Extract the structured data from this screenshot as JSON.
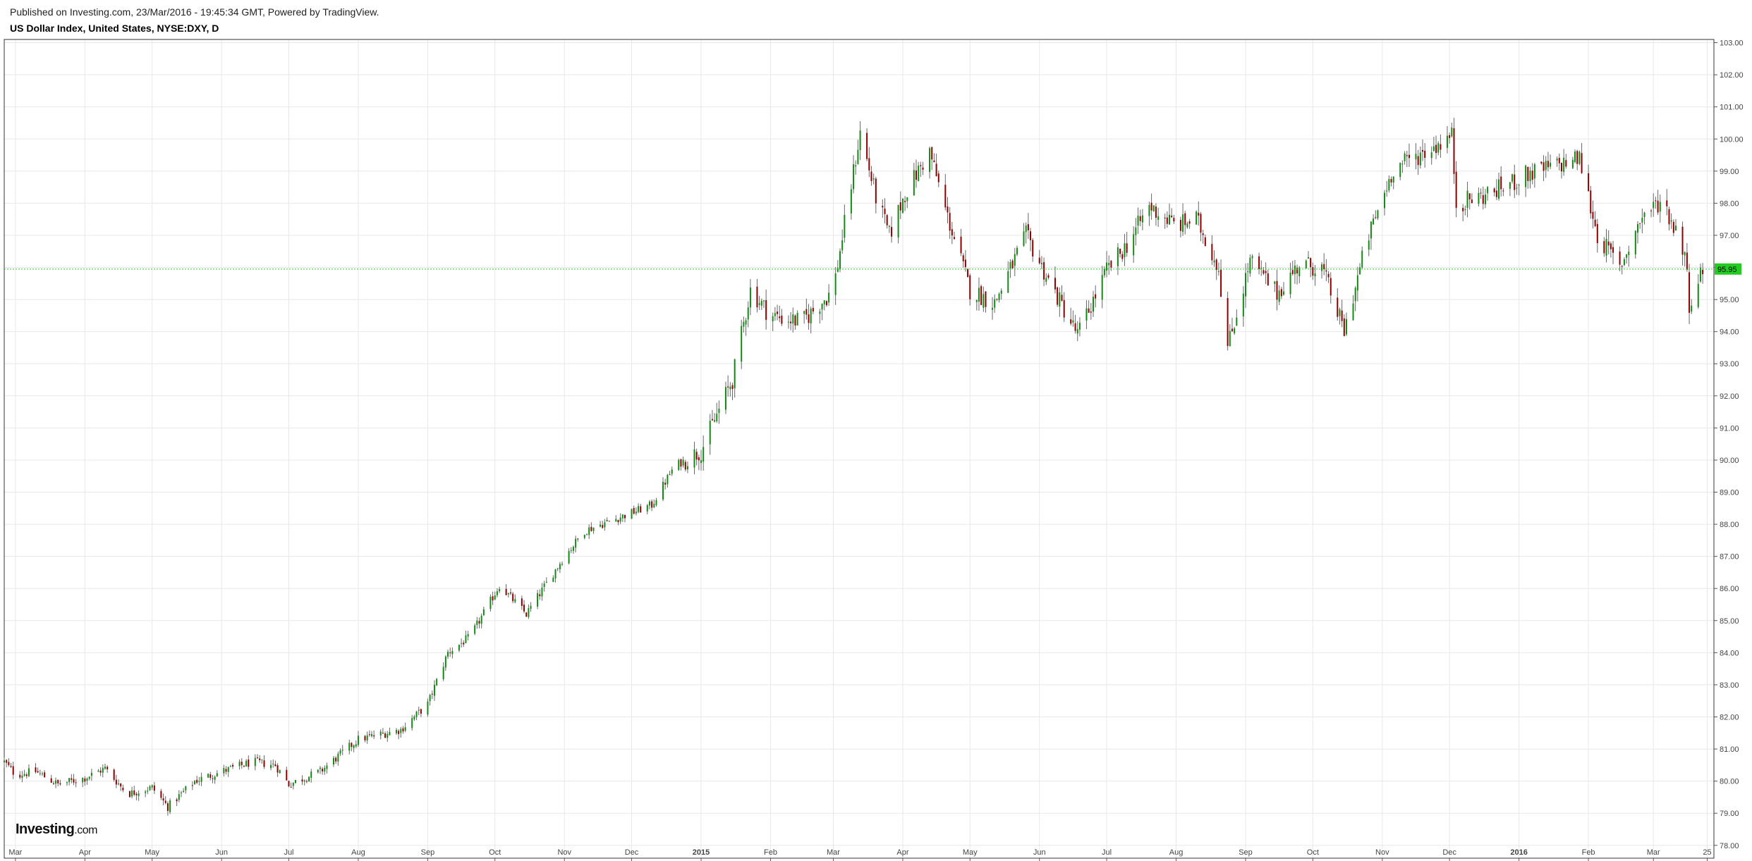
{
  "header": {
    "published": "Published on Investing.com, 23/Mar/2016 - 19:45:34 GMT, Powered by TradingView.",
    "symbol": "US Dollar Index, United States, NYSE:DXY, D"
  },
  "logo": {
    "brand": "Investing",
    "suffix": ".com"
  },
  "colors": {
    "up": "#138a13",
    "down": "#8b0000",
    "last_price_line": "#2ecc2e",
    "last_price_label_bg": "#22cc22",
    "grid": "#e8e8e8",
    "axis": "#555555"
  },
  "chart_data": {
    "type": "candlestick",
    "title": "US Dollar Index, United States, NYSE:DXY, D",
    "ylim": [
      77.6,
      103.1
    ],
    "yticks": [
      "78.00",
      "79.00",
      "80.00",
      "81.00",
      "82.00",
      "83.00",
      "84.00",
      "85.00",
      "86.00",
      "87.00",
      "88.00",
      "89.00",
      "90.00",
      "91.00",
      "92.00",
      "93.00",
      "94.00",
      "95.00",
      "96.00",
      "97.00",
      "98.00",
      "99.00",
      "100.00",
      "101.00",
      "102.00",
      "103.00"
    ],
    "x_start_label": "late Feb 2014",
    "xticks": [
      "Mar",
      "Apr",
      "May",
      "Jun",
      "Jul",
      "Aug",
      "Sep",
      "Oct",
      "Nov",
      "Dec",
      "2015",
      "Feb",
      "Mar",
      "Apr",
      "May",
      "Jun",
      "Jul",
      "Aug",
      "Sep",
      "Oct",
      "Nov",
      "Dec",
      "2016",
      "Feb",
      "Mar",
      "25"
    ],
    "last_price": "95.95",
    "grid": true,
    "path_points": [
      {
        "t": "2014-02-24",
        "v": 80.6
      },
      {
        "t": "2014-03-01",
        "v": 80.2
      },
      {
        "t": "2014-03-10",
        "v": 80.3
      },
      {
        "t": "2014-03-20",
        "v": 79.9
      },
      {
        "t": "2014-04-01",
        "v": 80.1
      },
      {
        "t": "2014-04-10",
        "v": 80.4
      },
      {
        "t": "2014-04-20",
        "v": 79.6
      },
      {
        "t": "2014-05-01",
        "v": 79.8
      },
      {
        "t": "2014-05-08",
        "v": 79.2
      },
      {
        "t": "2014-05-20",
        "v": 80.0
      },
      {
        "t": "2014-06-01",
        "v": 80.3
      },
      {
        "t": "2014-06-15",
        "v": 80.6
      },
      {
        "t": "2014-06-25",
        "v": 80.5
      },
      {
        "t": "2014-07-01",
        "v": 79.9
      },
      {
        "t": "2014-07-15",
        "v": 80.3
      },
      {
        "t": "2014-08-01",
        "v": 81.3
      },
      {
        "t": "2014-08-20",
        "v": 81.6
      },
      {
        "t": "2014-09-01",
        "v": 82.4
      },
      {
        "t": "2014-09-10",
        "v": 84.0
      },
      {
        "t": "2014-09-20",
        "v": 84.5
      },
      {
        "t": "2014-10-03",
        "v": 86.1
      },
      {
        "t": "2014-10-15",
        "v": 85.2
      },
      {
        "t": "2014-10-31",
        "v": 86.9
      },
      {
        "t": "2014-11-10",
        "v": 87.8
      },
      {
        "t": "2014-11-25",
        "v": 88.2
      },
      {
        "t": "2014-12-10",
        "v": 88.6
      },
      {
        "t": "2014-12-20",
        "v": 89.8
      },
      {
        "t": "2015-01-01",
        "v": 90.3
      },
      {
        "t": "2015-01-15",
        "v": 92.5
      },
      {
        "t": "2015-01-23",
        "v": 95.3
      },
      {
        "t": "2015-02-01",
        "v": 94.5
      },
      {
        "t": "2015-02-15",
        "v": 94.3
      },
      {
        "t": "2015-03-01",
        "v": 95.3
      },
      {
        "t": "2015-03-13",
        "v": 100.2
      },
      {
        "t": "2015-03-20",
        "v": 98.2
      },
      {
        "t": "2015-03-26",
        "v": 97.0
      },
      {
        "t": "2015-04-02",
        "v": 98.3
      },
      {
        "t": "2015-04-13",
        "v": 99.6
      },
      {
        "t": "2015-04-20",
        "v": 97.8
      },
      {
        "t": "2015-05-01",
        "v": 95.3
      },
      {
        "t": "2015-05-12",
        "v": 94.9
      },
      {
        "t": "2015-05-26",
        "v": 97.0
      },
      {
        "t": "2015-06-05",
        "v": 95.6
      },
      {
        "t": "2015-06-18",
        "v": 93.9
      },
      {
        "t": "2015-07-01",
        "v": 95.9
      },
      {
        "t": "2015-07-10",
        "v": 96.7
      },
      {
        "t": "2015-07-20",
        "v": 97.9
      },
      {
        "t": "2015-08-01",
        "v": 97.3
      },
      {
        "t": "2015-08-10",
        "v": 97.5
      },
      {
        "t": "2015-08-20",
        "v": 96.0
      },
      {
        "t": "2015-08-24",
        "v": 93.5
      },
      {
        "t": "2015-09-03",
        "v": 96.2
      },
      {
        "t": "2015-09-15",
        "v": 95.2
      },
      {
        "t": "2015-09-25",
        "v": 96.1
      },
      {
        "t": "2015-10-05",
        "v": 96.0
      },
      {
        "t": "2015-10-15",
        "v": 94.0
      },
      {
        "t": "2015-10-25",
        "v": 96.8
      },
      {
        "t": "2015-11-06",
        "v": 99.1
      },
      {
        "t": "2015-11-20",
        "v": 99.6
      },
      {
        "t": "2015-12-02",
        "v": 100.1
      },
      {
        "t": "2015-12-04",
        "v": 98.0
      },
      {
        "t": "2015-12-15",
        "v": 98.2
      },
      {
        "t": "2015-12-25",
        "v": 98.5
      },
      {
        "t": "2016-01-05",
        "v": 98.9
      },
      {
        "t": "2016-01-28",
        "v": 99.4
      },
      {
        "t": "2016-02-05",
        "v": 97.0
      },
      {
        "t": "2016-02-15",
        "v": 96.0
      },
      {
        "t": "2016-02-25",
        "v": 97.6
      },
      {
        "t": "2016-03-05",
        "v": 98.1
      },
      {
        "t": "2016-03-15",
        "v": 96.5
      },
      {
        "t": "2016-03-17",
        "v": 94.9
      },
      {
        "t": "2016-03-23",
        "v": 95.95
      }
    ]
  }
}
